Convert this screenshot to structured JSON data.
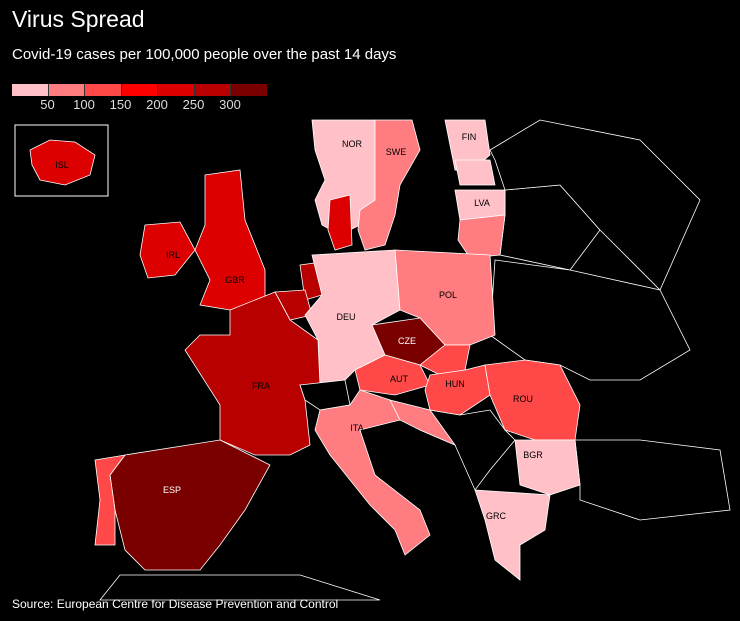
{
  "title": "Virus Spread",
  "subtitle": "Covid-19 cases per 100,000 people over the past 14 days",
  "source": "Source: European Centre for Disease Prevention and Control",
  "legend": {
    "bins": [
      "#ffc0c8",
      "#ff7c80",
      "#ff4848",
      "#ff0000",
      "#dd0000",
      "#b80000",
      "#7a0000"
    ],
    "ticks": [
      "50",
      "100",
      "150",
      "200",
      "250",
      "300"
    ]
  },
  "countries": {
    "NOR": {
      "label": "NOR",
      "bin": 0
    },
    "SWE": {
      "label": "SWE",
      "bin": 1
    },
    "FIN": {
      "label": "FIN",
      "bin": 0
    },
    "LVA": {
      "label": "LVA",
      "bin": 0
    },
    "ISL": {
      "label": "ISL",
      "bin": 4
    },
    "IRL": {
      "label": "IRL",
      "bin": 4
    },
    "GBR": {
      "label": "GBR",
      "bin": 4
    },
    "DEU": {
      "label": "DEU",
      "bin": 0
    },
    "POL": {
      "label": "POL",
      "bin": 1
    },
    "CZE": {
      "label": "CZE",
      "bin": 6
    },
    "FRA": {
      "label": "FRA",
      "bin": 5
    },
    "AUT": {
      "label": "AUT",
      "bin": 2
    },
    "HUN": {
      "label": "HUN",
      "bin": 2
    },
    "ROU": {
      "label": "ROU",
      "bin": 2
    },
    "ITA": {
      "label": "ITA",
      "bin": 1
    },
    "BGR": {
      "label": "BGR",
      "bin": 0
    },
    "ESP": {
      "label": "ESP",
      "bin": 6
    },
    "GRC": {
      "label": "GRC",
      "bin": 0
    }
  }
}
